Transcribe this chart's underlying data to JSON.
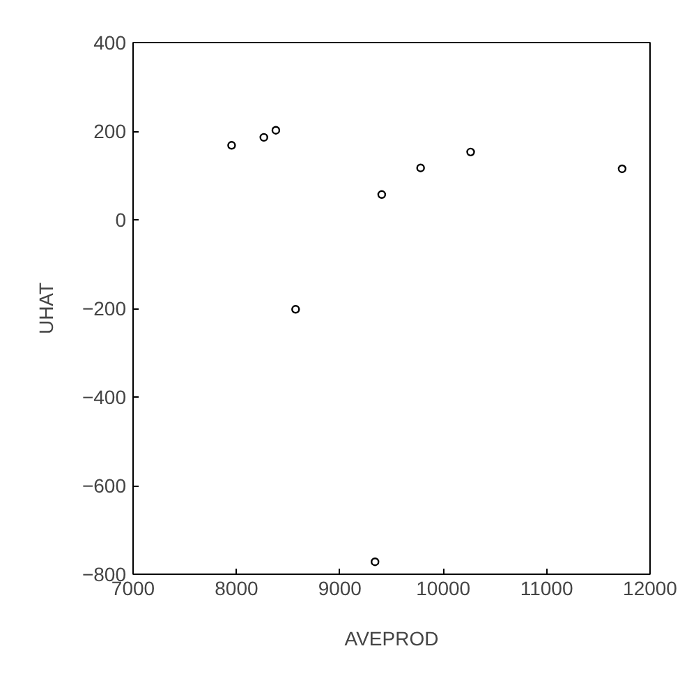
{
  "chart_data": {
    "type": "scatter",
    "xlabel": "AVEPROD",
    "ylabel": "UHAT",
    "x": [
      7953,
      8265,
      8381,
      8572,
      9405,
      9781,
      10265,
      11730,
      9340
    ],
    "values": [
      168,
      186,
      202,
      -202,
      57,
      117,
      153,
      115,
      -772
    ],
    "color": "#000000",
    "marker": "circle",
    "xlim": [
      7000,
      12000
    ],
    "xticks": [
      7000,
      8000,
      9000,
      10000,
      11000,
      12000
    ],
    "ylim": [
      -800,
      400
    ],
    "yticks": [
      -800,
      -600,
      -400,
      -200,
      0,
      200,
      400
    ],
    "grid": false
  }
}
